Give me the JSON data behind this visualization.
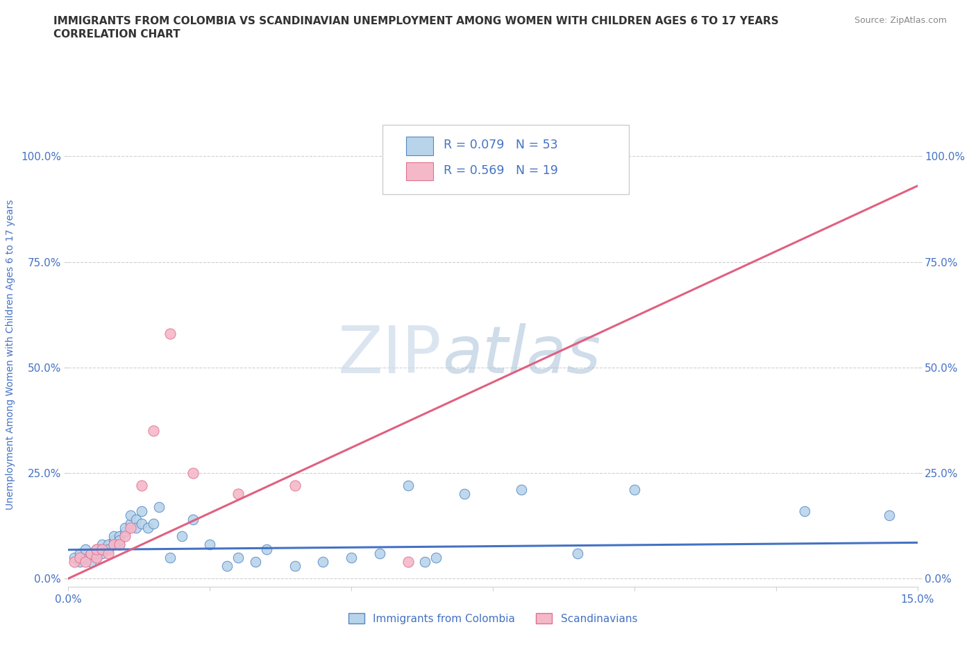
{
  "title_line1": "IMMIGRANTS FROM COLOMBIA VS SCANDINAVIAN UNEMPLOYMENT AMONG WOMEN WITH CHILDREN AGES 6 TO 17 YEARS",
  "title_line2": "CORRELATION CHART",
  "source_text": "Source: ZipAtlas.com",
  "ylabel": "Unemployment Among Women with Children Ages 6 to 17 years",
  "xlim": [
    0.0,
    0.15
  ],
  "ylim": [
    -0.02,
    1.08
  ],
  "xticks": [
    0.0,
    0.025,
    0.05,
    0.075,
    0.1,
    0.125,
    0.15
  ],
  "xticklabels": [
    "0.0%",
    "",
    "",
    "",
    "",
    "",
    "15.0%"
  ],
  "yticks": [
    0.0,
    0.25,
    0.5,
    0.75,
    1.0
  ],
  "yticklabels_left": [
    "0.0%",
    "25.0%",
    "50.0%",
    "75.0%",
    "100.0%"
  ],
  "yticklabels_right": [
    "0.0%",
    "25.0%",
    "50.0%",
    "75.0%",
    "100.0%"
  ],
  "watermark_zip": "ZIP",
  "watermark_atlas": "atlas",
  "legend_R1": "R = 0.079",
  "legend_N1": "N = 53",
  "legend_R2": "R = 0.569",
  "legend_N2": "N = 19",
  "color_colombia": "#b8d4ea",
  "color_scandinavian": "#f5b8c8",
  "color_colombia_edge": "#5585c5",
  "color_scandinavian_edge": "#e07090",
  "color_colombia_line": "#4472c4",
  "color_scandinavian_line": "#e06080",
  "color_tick_label": "#4472c4",
  "color_title": "#333333",
  "color_grid": "#d0d0d0",
  "colombia_x": [
    0.001,
    0.002,
    0.002,
    0.003,
    0.003,
    0.004,
    0.004,
    0.005,
    0.005,
    0.005,
    0.006,
    0.006,
    0.006,
    0.007,
    0.007,
    0.008,
    0.008,
    0.008,
    0.009,
    0.009,
    0.009,
    0.01,
    0.01,
    0.011,
    0.011,
    0.012,
    0.012,
    0.013,
    0.013,
    0.014,
    0.015,
    0.016,
    0.018,
    0.02,
    0.022,
    0.025,
    0.028,
    0.03,
    0.033,
    0.035,
    0.04,
    0.045,
    0.05,
    0.055,
    0.06,
    0.063,
    0.065,
    0.07,
    0.08,
    0.09,
    0.1,
    0.13,
    0.145
  ],
  "colombia_y": [
    0.05,
    0.04,
    0.06,
    0.05,
    0.07,
    0.04,
    0.06,
    0.05,
    0.07,
    0.06,
    0.07,
    0.08,
    0.06,
    0.08,
    0.07,
    0.09,
    0.08,
    0.1,
    0.08,
    0.1,
    0.09,
    0.11,
    0.12,
    0.13,
    0.15,
    0.14,
    0.12,
    0.16,
    0.13,
    0.12,
    0.13,
    0.17,
    0.05,
    0.1,
    0.14,
    0.08,
    0.03,
    0.05,
    0.04,
    0.07,
    0.03,
    0.04,
    0.05,
    0.06,
    0.22,
    0.04,
    0.05,
    0.2,
    0.21,
    0.06,
    0.21,
    0.16,
    0.15
  ],
  "scandinavian_x": [
    0.001,
    0.002,
    0.003,
    0.004,
    0.005,
    0.005,
    0.006,
    0.007,
    0.008,
    0.009,
    0.01,
    0.011,
    0.013,
    0.015,
    0.018,
    0.022,
    0.03,
    0.04,
    0.06
  ],
  "scandinavian_y": [
    0.04,
    0.05,
    0.04,
    0.06,
    0.05,
    0.07,
    0.07,
    0.06,
    0.08,
    0.08,
    0.1,
    0.12,
    0.22,
    0.35,
    0.58,
    0.25,
    0.2,
    0.22,
    0.04
  ],
  "colombia_trend_x": [
    0.0,
    0.15
  ],
  "colombia_trend_y": [
    0.068,
    0.085
  ],
  "scandinavian_trend_x": [
    0.0,
    0.15
  ],
  "scandinavian_trend_y": [
    0.0,
    0.93
  ]
}
